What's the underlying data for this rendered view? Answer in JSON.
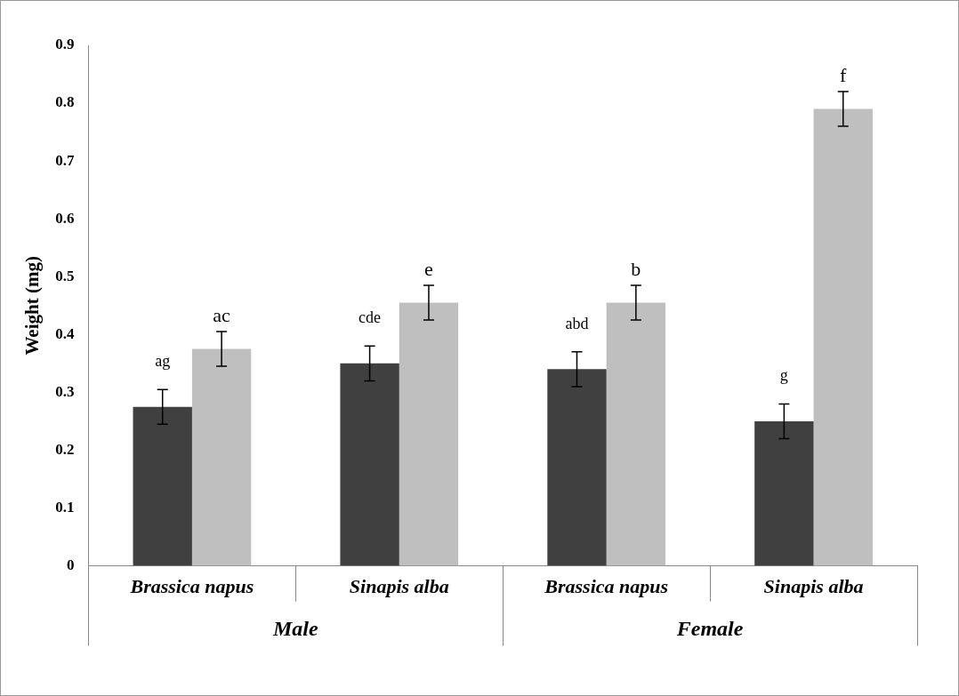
{
  "chart_data": {
    "type": "bar",
    "ylabel": "Weight (mg)",
    "categories": [
      "Brassica napus",
      "Sinapis alba",
      "Brassica napus",
      "Sinapis alba"
    ],
    "series": [
      {
        "color": "#404040",
        "values": [
          0.275,
          0.35,
          0.34,
          0.25
        ],
        "errors": [
          0.03,
          0.03,
          0.03,
          0.03
        ],
        "value_labels": [
          "ag",
          "cde",
          "abd",
          "g"
        ]
      },
      {
        "color": "#bfbfbf",
        "values": [
          0.375,
          0.455,
          0.455,
          0.79
        ],
        "errors": [
          0.03,
          0.03,
          0.03,
          0.03
        ],
        "value_labels": [
          "ac",
          "e",
          "b",
          "f"
        ]
      }
    ],
    "ylim": [
      0,
      0.9
    ],
    "yticks": [
      0,
      0.1,
      0.2,
      0.3,
      0.4,
      0.5,
      0.6,
      0.7,
      0.8,
      0.9
    ],
    "grid": false,
    "legend": false,
    "annotations": [
      "Male",
      "Female"
    ]
  }
}
